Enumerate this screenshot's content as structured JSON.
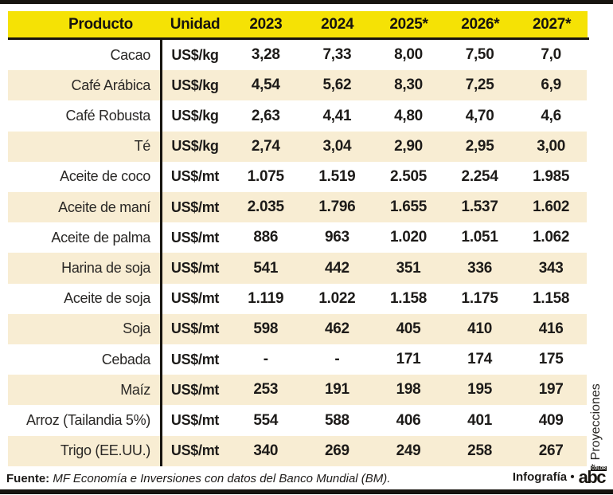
{
  "chart_data": {
    "type": "table",
    "columns": [
      "Producto",
      "Unidad",
      "2023",
      "2024",
      "2025*",
      "2026*",
      "2027*"
    ],
    "rows": [
      [
        "Cacao",
        "US$/kg",
        "3,28",
        "7,33",
        "8,00",
        "7,50",
        "7,0"
      ],
      [
        "Café Arábica",
        "US$/kg",
        "4,54",
        "5,62",
        "8,30",
        "7,25",
        "6,9"
      ],
      [
        "Café Robusta",
        "US$/kg",
        "2,63",
        "4,41",
        "4,80",
        "4,70",
        "4,6"
      ],
      [
        "Té",
        "US$/kg",
        "2,74",
        "3,04",
        "2,90",
        "2,95",
        "3,00"
      ],
      [
        "Aceite de coco",
        "US$/mt",
        "1.075",
        "1.519",
        "2.505",
        "2.254",
        "1.985"
      ],
      [
        "Aceite de maní",
        "US$/mt",
        "2.035",
        "1.796",
        "1.655",
        "1.537",
        "1.602"
      ],
      [
        "Aceite de palma",
        "US$/mt",
        "886",
        "963",
        "1.020",
        "1.051",
        "1.062"
      ],
      [
        "Harina de soja",
        "US$/mt",
        "541",
        "442",
        "351",
        "336",
        "343"
      ],
      [
        "Aceite de soja",
        "US$/mt",
        "1.119",
        "1.022",
        "1.158",
        "1.175",
        "1.158"
      ],
      [
        "Soja",
        "US$/mt",
        "598",
        "462",
        "405",
        "410",
        "416"
      ],
      [
        "Cebada",
        "US$/mt",
        "-",
        "-",
        "171",
        "174",
        "175"
      ],
      [
        "Maíz",
        "US$/mt",
        "253",
        "191",
        "198",
        "195",
        "197"
      ],
      [
        "Arroz (Tailandia 5%)",
        "US$/mt",
        "554",
        "588",
        "406",
        "401",
        "409"
      ],
      [
        "Trigo (EE.UU.)",
        "US$/mt",
        "340",
        "269",
        "249",
        "258",
        "267"
      ]
    ],
    "footnote": "* Proyecciones",
    "source": "Fuente: MF Economía e Inversiones con datos del Banco Mundial (BM).",
    "layout_hints": {
      "alternating_row_shading": true,
      "header_position": "top"
    }
  },
  "side_note": "* Proyecciones",
  "footer": {
    "source_label": "Fuente:",
    "source_text": "MF Economía e Inversiones con datos del Banco Mundial (BM).",
    "credit_label": "Infografía •",
    "logo_text": "abc",
    "logo_tag": "COLOR"
  },
  "colors": {
    "header_bg": "#F5E205",
    "row_alt_bg": "#F8EDD3",
    "border_bar": "#17140F",
    "text": "#1D1B19"
  }
}
